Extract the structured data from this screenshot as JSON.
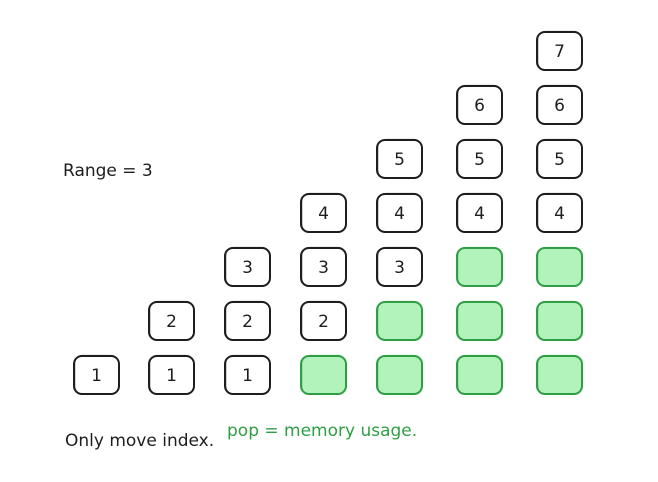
{
  "range_label": "Range = 3",
  "note_index": "Only move index.",
  "note_pop": "pop = memory usage.",
  "colors": {
    "stroke": "#1e1e1e",
    "popped_fill": "#b2f2bb",
    "popped_stroke": "#2f9e44",
    "note_green": "#2f9e44"
  },
  "columns": [
    {
      "cells": [
        "1"
      ]
    },
    {
      "cells": [
        "1",
        "2"
      ]
    },
    {
      "cells": [
        "1",
        "2",
        "3"
      ]
    },
    {
      "cells": [
        null,
        "2",
        "3",
        "4"
      ]
    },
    {
      "cells": [
        null,
        null,
        "3",
        "4",
        "5"
      ]
    },
    {
      "cells": [
        null,
        null,
        null,
        "4",
        "5",
        "6"
      ]
    },
    {
      "cells": [
        null,
        null,
        null,
        "4",
        "5",
        "6",
        "7"
      ]
    }
  ]
}
